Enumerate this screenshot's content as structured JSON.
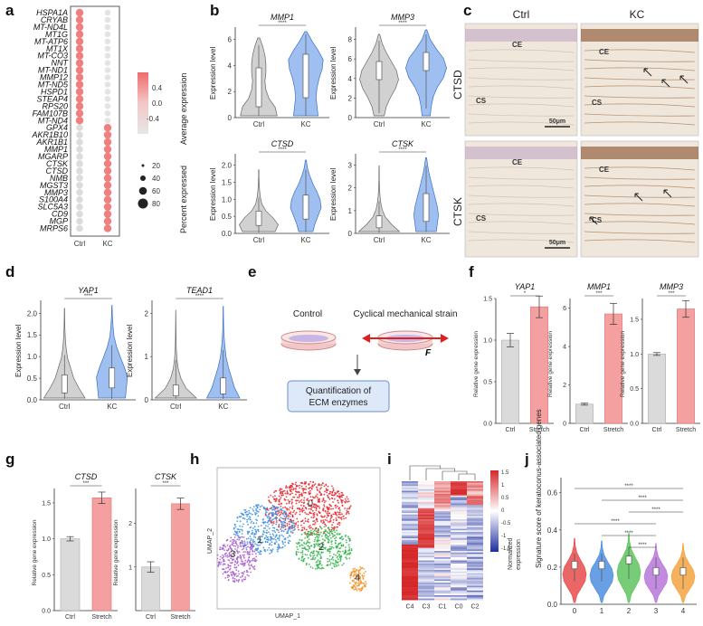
{
  "panel_labels": [
    "a",
    "b",
    "c",
    "d",
    "e",
    "f",
    "g",
    "h",
    "i",
    "j"
  ],
  "colors": {
    "ctrl": "#d9d9d9",
    "kc": "#f28e8e",
    "violin_ctrl": "#bdbdbd",
    "violin_kc": "#7fa8e8",
    "stretch": "#f4a0a0"
  },
  "panel_a": {
    "genes": [
      "HSPA1A",
      "CRYAB",
      "MT-ND4L",
      "MT1G",
      "MT-ATP6",
      "MT1X",
      "MT-CO3",
      "NNT",
      "MT-ND1",
      "MMP12",
      "MT-ND5",
      "HSPD1",
      "STEAP4",
      "RPS20",
      "FAM107B",
      "MT-ND4",
      "GPX4",
      "AKR1B10",
      "AKR1B1",
      "MMP1",
      "MGARP",
      "CTSK",
      "CTSD",
      "NMB",
      "MGST3",
      "MMP3",
      "S100A4",
      "SLC5A3",
      "CD9",
      "MGP",
      "MRPS6"
    ],
    "groups": [
      "Ctrl",
      "KC"
    ],
    "legend_expr_title": "Average expression",
    "legend_expr_ticks": [
      "0.4",
      "0.0",
      "-0.4"
    ],
    "legend_pct_title": "Percent expressed",
    "legend_pct_ticks": [
      "20",
      "40",
      "60",
      "80"
    ]
  },
  "chart_data": [
    {
      "panel": "b",
      "type": "violin",
      "title": "MMP1",
      "ylabel": "Expression level",
      "categories": [
        "Ctrl",
        "KC"
      ],
      "yticks": [
        "0",
        "2",
        "4",
        "6"
      ],
      "sig": "****"
    },
    {
      "panel": "b",
      "type": "violin",
      "title": "MMP3",
      "ylabel": "Expression level",
      "categories": [
        "Ctrl",
        "KC"
      ],
      "yticks": [
        "0",
        "2",
        "4",
        "6",
        "8"
      ],
      "sig": "****"
    },
    {
      "panel": "b",
      "type": "violin",
      "title": "CTSD",
      "ylabel": "Expression level",
      "categories": [
        "Ctrl",
        "KC"
      ],
      "yticks": [
        "0.0",
        "0.5",
        "1.0",
        "1.5",
        "2.0"
      ],
      "sig": "****"
    },
    {
      "panel": "b",
      "type": "violin",
      "title": "CTSK",
      "ylabel": "Expression level",
      "categories": [
        "Ctrl",
        "KC"
      ],
      "yticks": [
        "0",
        "1",
        "2",
        "3"
      ],
      "sig": "****"
    },
    {
      "panel": "d",
      "type": "violin",
      "title": "YAP1",
      "ylabel": "Expression level",
      "categories": [
        "Ctrl",
        "KC"
      ],
      "yticks": [
        "0.0",
        "0.5",
        "1.0",
        "1.5",
        "2.0"
      ],
      "sig": "****"
    },
    {
      "panel": "d",
      "type": "violin",
      "title": "TEAD1",
      "ylabel": "Expression level",
      "categories": [
        "Ctrl",
        "KC"
      ],
      "yticks": [
        "0",
        "1",
        "2"
      ],
      "sig": "****"
    },
    {
      "panel": "f",
      "type": "bar",
      "title": "YAP1",
      "ylabel": "Relative gene expression",
      "categories": [
        "Ctrl",
        "Stretch"
      ],
      "values": [
        1.0,
        1.4
      ],
      "errors": [
        0.08,
        0.13
      ],
      "ylim": [
        0,
        1.5
      ],
      "yticks": [
        "0.0",
        "0.5",
        "1.0",
        "1.5"
      ],
      "sig": "*"
    },
    {
      "panel": "f",
      "type": "bar",
      "title": "MMP1",
      "ylabel": "Relative gene expression",
      "categories": [
        "Ctrl",
        "Stretch"
      ],
      "values": [
        1.0,
        5.7
      ],
      "errors": [
        0.05,
        0.55
      ],
      "ylim": [
        0,
        6.5
      ],
      "yticks": [
        "0",
        "2",
        "4",
        "6"
      ],
      "sig": "***"
    },
    {
      "panel": "f",
      "type": "bar",
      "title": "MMP3",
      "ylabel": "Relative gene expression",
      "categories": [
        "Ctrl",
        "Stretch"
      ],
      "values": [
        1.0,
        1.65
      ],
      "errors": [
        0.02,
        0.12
      ],
      "ylim": [
        0,
        1.8
      ],
      "yticks": [
        "0.0",
        "0.5",
        "1.0",
        "1.5"
      ],
      "sig": "***"
    },
    {
      "panel": "g",
      "type": "bar",
      "title": "CTSD",
      "ylabel": "Relative gene expression",
      "categories": [
        "Ctrl",
        "Stretch"
      ],
      "values": [
        1.0,
        1.57
      ],
      "errors": [
        0.03,
        0.08
      ],
      "ylim": [
        0,
        1.7
      ],
      "yticks": [
        "0.0",
        "0.5",
        "1.0",
        "1.5"
      ],
      "sig": "***"
    },
    {
      "panel": "g",
      "type": "bar",
      "title": "CTSK",
      "ylabel": "Relative gene expression",
      "categories": [
        "Ctrl",
        "Stretch"
      ],
      "values": [
        1.0,
        2.45
      ],
      "errors": [
        0.12,
        0.13
      ],
      "ylim": [
        0,
        2.8
      ],
      "yticks": [
        "1",
        "2"
      ],
      "sig": "***"
    },
    {
      "panel": "j",
      "type": "violin",
      "title": "",
      "ylabel": "Signature score of keratoconus-associated genes",
      "categories": [
        "0",
        "1",
        "2",
        "3",
        "4"
      ],
      "yticks": [
        "0.0",
        "0.2",
        "0.4",
        "0.6"
      ],
      "sig": "****"
    }
  ],
  "panel_c": {
    "columns": [
      "Ctrl",
      "KC"
    ],
    "rows": [
      "CTSD",
      "CTSK"
    ],
    "labels_ce": "CE",
    "labels_cs": "CS",
    "scale": "50μm"
  },
  "panel_e": {
    "control": "Control",
    "strain": "Cyclical mechanical strain",
    "force": "F",
    "result_line1": "Quantification of",
    "result_line2": "ECM enzymes"
  },
  "panel_h": {
    "xlabel": "UMAP_1",
    "ylabel": "UMAP_2",
    "clusters": [
      "0",
      "1",
      "2",
      "3",
      "4"
    ]
  },
  "panel_i": {
    "columns": [
      "C4",
      "C3",
      "C1",
      "C0",
      "C2"
    ],
    "legend_ticks": [
      "1.5",
      "1",
      "0.5",
      "0",
      "-0.5",
      "-1",
      "-1.5"
    ],
    "legend_title_1": "Normalized",
    "legend_title_2": "expression"
  }
}
